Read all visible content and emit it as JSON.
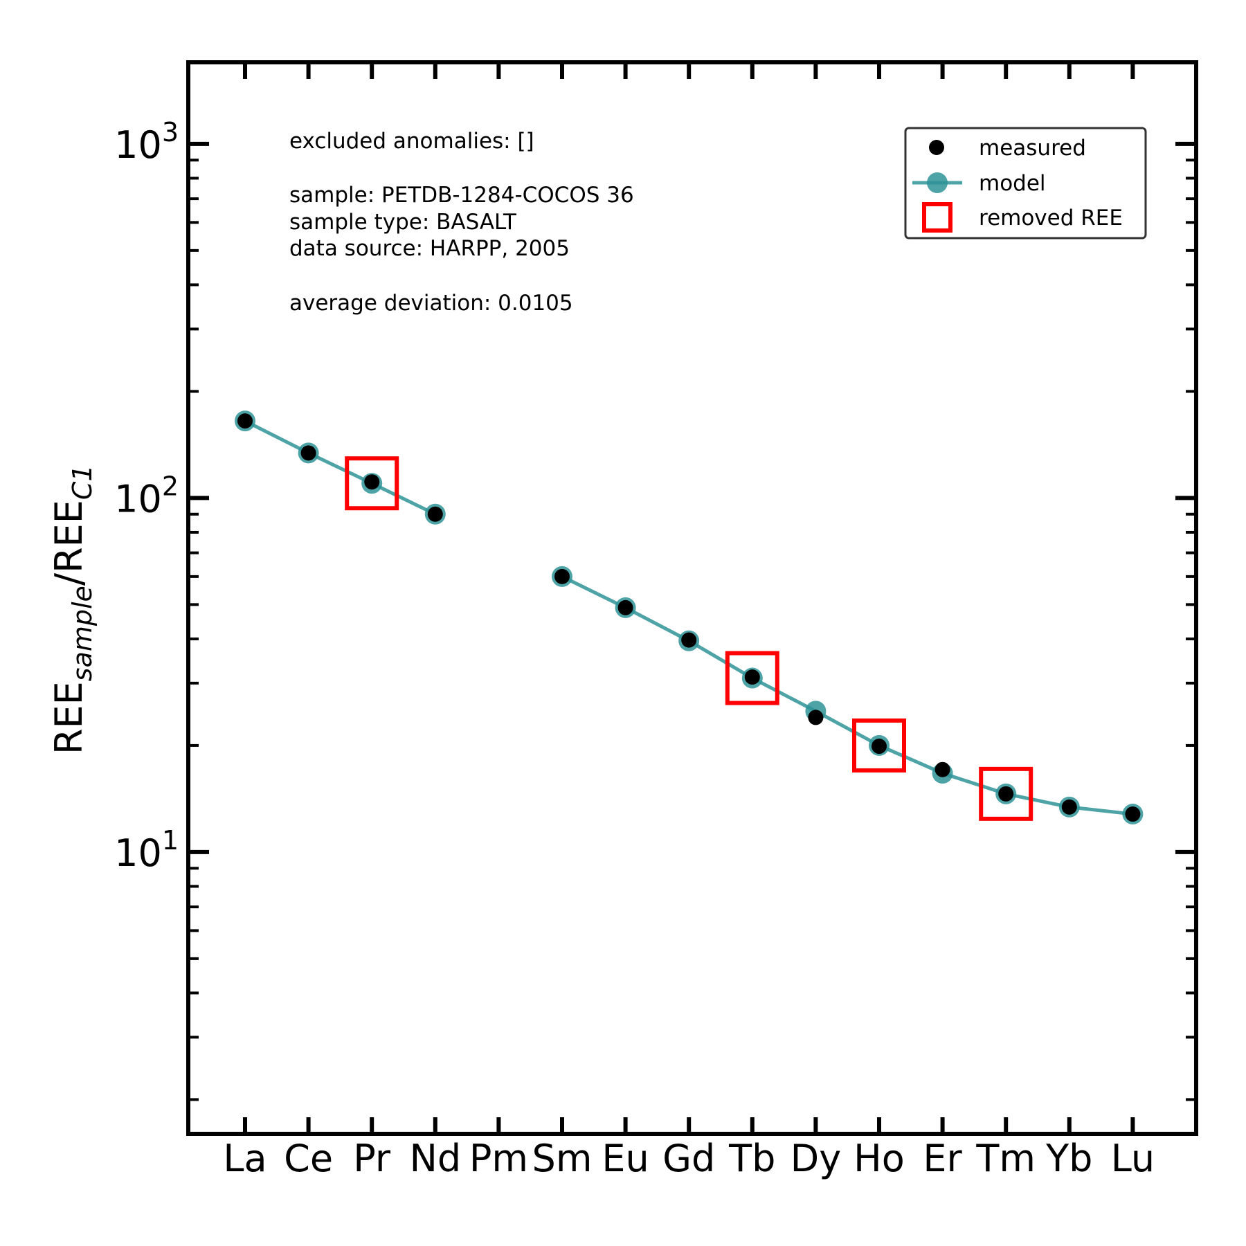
{
  "chart_data": {
    "type": "line",
    "categories": [
      "La",
      "Ce",
      "Pr",
      "Nd",
      "Pm",
      "Sm",
      "Eu",
      "Gd",
      "Tb",
      "Dy",
      "Ho",
      "Er",
      "Tm",
      "Yb",
      "Lu"
    ],
    "y_scale": "log",
    "ylim": [
      1.6,
      1700
    ],
    "ylabel": "REE_sample/REE_C1",
    "xlabel": "",
    "title": "",
    "y_ticks": [
      {
        "value": 10,
        "label": "10",
        "exp": "1"
      },
      {
        "value": 100,
        "label": "10",
        "exp": "2"
      },
      {
        "value": 1000,
        "label": "10",
        "exp": "3"
      }
    ],
    "series": [
      {
        "name": "measured",
        "style": "points",
        "color": "#000000",
        "values": [
          165,
          134,
          111,
          90,
          null,
          60,
          49,
          39.7,
          31.2,
          24,
          19.9,
          17.1,
          14.6,
          13.4,
          12.8
        ]
      },
      {
        "name": "model",
        "style": "line+markers",
        "color": "#2e9396",
        "values": [
          165,
          134,
          110,
          90,
          null,
          60,
          49,
          39.5,
          31,
          25,
          20,
          16.7,
          14.6,
          13.4,
          12.8
        ]
      },
      {
        "name": "removed REE",
        "style": "open-squares",
        "color": "#ff0000",
        "categories": [
          "Pr",
          "Tb",
          "Ho",
          "Tm"
        ]
      }
    ],
    "legend": {
      "position": "top-right"
    },
    "grid": false,
    "annotations": [
      "excluded anomalies: []",
      "sample: PETDB-1284-COCOS 36",
      "sample type: BASALT",
      "data source: HARPP, 2005",
      "average deviation: 0.0105"
    ]
  }
}
